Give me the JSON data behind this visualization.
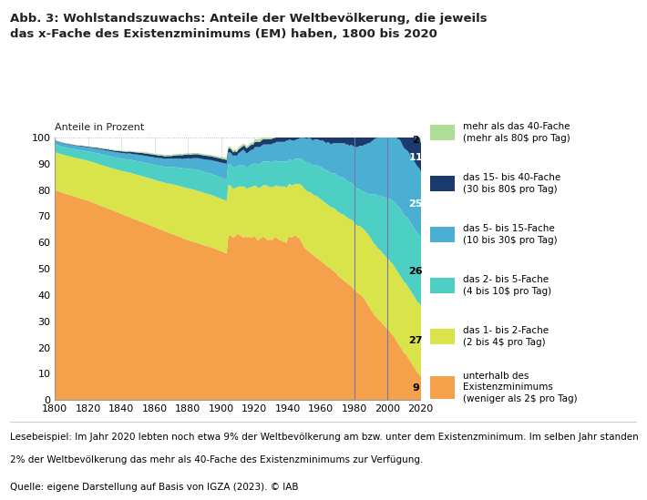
{
  "title": "Abb. 3: Wohlstandszuwachs: Anteile der Weltbevölkerung, die jeweils\ndas x-Fache des Existenzminimums (EM) haben, 1800 bis 2020",
  "subtitle": "Anteile in Prozent",
  "footnote1": "Lesebeispiel: Im Jahr 2020 lebten noch etwa 9% der Weltbevölkerung am bzw. unter dem Existenzminimum. Im selben Jahr standen",
  "footnote2": "2% der Weltbevölkerung das mehr als 40-Fache des Existenzminimums zur Verfügung.",
  "source": "Quelle: eigene Darstellung auf Basis von IGZA (2023). © IAB",
  "colors": {
    "below": "#F5A04A",
    "x1_2": "#D9E44A",
    "x2_5": "#4ECFC4",
    "x5_15": "#4BAFD4",
    "x15_40": "#1B3A6E",
    "above40": "#AEDD96"
  },
  "legend_labels": [
    "mehr als das 40-Fache\n(mehr als 80$ pro Tag)",
    "das 15- bis 40-Fache\n(30 bis 80$ pro Tag)",
    "das 5- bis 15-Fache\n(10 bis 30$ pro Tag)",
    "das 2- bis 5-Fache\n(4 bis 10$ pro Tag)",
    "das 1- bis 2-Fache\n(2 bis 4$ pro Tag)",
    "unterhalb des\nExistenzminimums\n(weniger als 2$ pro Tag)"
  ],
  "years": [
    1800,
    1801,
    1802,
    1803,
    1804,
    1805,
    1806,
    1807,
    1808,
    1809,
    1810,
    1811,
    1812,
    1813,
    1814,
    1815,
    1816,
    1817,
    1818,
    1819,
    1820,
    1821,
    1822,
    1823,
    1824,
    1825,
    1826,
    1827,
    1828,
    1829,
    1830,
    1831,
    1832,
    1833,
    1834,
    1835,
    1836,
    1837,
    1838,
    1839,
    1840,
    1841,
    1842,
    1843,
    1844,
    1845,
    1846,
    1847,
    1848,
    1849,
    1850,
    1851,
    1852,
    1853,
    1854,
    1855,
    1856,
    1857,
    1858,
    1859,
    1860,
    1861,
    1862,
    1863,
    1864,
    1865,
    1866,
    1867,
    1868,
    1869,
    1870,
    1871,
    1872,
    1873,
    1874,
    1875,
    1876,
    1877,
    1878,
    1879,
    1880,
    1881,
    1882,
    1883,
    1884,
    1885,
    1886,
    1887,
    1888,
    1889,
    1890,
    1891,
    1892,
    1893,
    1894,
    1895,
    1896,
    1897,
    1898,
    1899,
    1900,
    1901,
    1902,
    1903,
    1904,
    1905,
    1906,
    1907,
    1908,
    1909,
    1910,
    1911,
    1912,
    1913,
    1914,
    1915,
    1916,
    1917,
    1918,
    1919,
    1920,
    1921,
    1922,
    1923,
    1924,
    1925,
    1926,
    1927,
    1928,
    1929,
    1930,
    1931,
    1932,
    1933,
    1934,
    1935,
    1936,
    1937,
    1938,
    1939,
    1940,
    1941,
    1942,
    1943,
    1944,
    1945,
    1946,
    1947,
    1948,
    1949,
    1950,
    1951,
    1952,
    1953,
    1954,
    1955,
    1956,
    1957,
    1958,
    1959,
    1960,
    1961,
    1962,
    1963,
    1964,
    1965,
    1966,
    1967,
    1968,
    1969,
    1970,
    1971,
    1972,
    1973,
    1974,
    1975,
    1976,
    1977,
    1978,
    1979,
    1980,
    1981,
    1982,
    1983,
    1984,
    1985,
    1986,
    1987,
    1988,
    1989,
    1990,
    1991,
    1992,
    1993,
    1994,
    1995,
    1996,
    1997,
    1998,
    1999,
    2000,
    2001,
    2002,
    2003,
    2004,
    2005,
    2006,
    2007,
    2008,
    2009,
    2010,
    2011,
    2012,
    2013,
    2014,
    2015,
    2016,
    2017,
    2018,
    2019,
    2020
  ],
  "below_data": [
    80.0,
    79.8,
    79.6,
    79.4,
    79.2,
    79.0,
    78.8,
    78.6,
    78.4,
    78.2,
    78.0,
    77.8,
    77.6,
    77.4,
    77.2,
    77.0,
    76.8,
    76.6,
    76.4,
    76.2,
    76.0,
    75.8,
    75.5,
    75.2,
    75.0,
    74.8,
    74.5,
    74.2,
    74.0,
    73.8,
    73.5,
    73.2,
    73.0,
    72.8,
    72.5,
    72.3,
    72.0,
    71.8,
    71.5,
    71.2,
    71.0,
    70.7,
    70.4,
    70.2,
    70.0,
    69.8,
    69.5,
    69.2,
    69.0,
    68.7,
    68.5,
    68.2,
    68.0,
    67.7,
    67.5,
    67.2,
    67.0,
    66.7,
    66.5,
    66.2,
    66.0,
    65.7,
    65.4,
    65.2,
    65.0,
    64.7,
    64.4,
    64.2,
    64.0,
    63.7,
    63.5,
    63.3,
    63.0,
    62.8,
    62.5,
    62.2,
    62.0,
    61.7,
    61.5,
    61.2,
    61.0,
    60.8,
    60.6,
    60.4,
    60.2,
    60.0,
    59.8,
    59.6,
    59.4,
    59.2,
    59.0,
    58.8,
    58.6,
    58.5,
    58.3,
    58.0,
    57.8,
    57.5,
    57.3,
    57.0,
    56.8,
    56.5,
    56.3,
    56.0,
    62.5,
    63.0,
    62.5,
    62.0,
    62.5,
    63.0,
    63.5,
    63.0,
    62.5,
    62.0,
    62.5,
    62.0,
    62.5,
    62.0,
    62.0,
    62.5,
    62.5,
    61.5,
    61.0,
    61.5,
    62.0,
    62.5,
    62.0,
    61.5,
    61.0,
    61.5,
    61.0,
    61.5,
    62.0,
    62.0,
    61.5,
    61.0,
    61.0,
    60.5,
    60.5,
    60.0,
    62.0,
    62.5,
    62.0,
    62.5,
    63.0,
    62.5,
    62.0,
    61.5,
    60.5,
    59.5,
    58.0,
    57.5,
    57.0,
    56.5,
    56.0,
    55.5,
    55.0,
    54.5,
    54.0,
    53.5,
    53.0,
    52.5,
    52.0,
    51.5,
    51.0,
    50.5,
    50.0,
    49.5,
    49.0,
    48.5,
    47.5,
    47.0,
    46.5,
    46.0,
    45.5,
    45.0,
    44.5,
    44.0,
    43.5,
    43.0,
    42.0,
    41.5,
    41.0,
    40.5,
    40.0,
    39.5,
    38.5,
    37.5,
    36.5,
    35.5,
    34.5,
    33.5,
    32.5,
    32.0,
    31.0,
    30.5,
    30.0,
    29.0,
    28.5,
    27.5,
    27.0,
    26.5,
    25.5,
    25.0,
    24.0,
    23.0,
    22.0,
    21.0,
    20.0,
    19.0,
    18.0,
    17.5,
    16.5,
    15.5,
    14.5,
    13.5,
    12.5,
    11.5,
    10.5,
    10.0,
    9.0
  ],
  "x1_2_data": [
    14.5,
    14.5,
    14.5,
    14.5,
    14.5,
    14.6,
    14.6,
    14.6,
    14.7,
    14.7,
    14.8,
    14.8,
    14.9,
    14.9,
    15.0,
    15.0,
    15.1,
    15.1,
    15.2,
    15.2,
    15.3,
    15.3,
    15.4,
    15.4,
    15.5,
    15.5,
    15.6,
    15.6,
    15.7,
    15.7,
    15.8,
    15.8,
    15.9,
    15.9,
    16.0,
    16.0,
    16.1,
    16.2,
    16.3,
    16.4,
    16.5,
    16.6,
    16.7,
    16.8,
    16.9,
    17.0,
    17.1,
    17.1,
    17.2,
    17.3,
    17.4,
    17.4,
    17.5,
    17.6,
    17.6,
    17.7,
    17.8,
    17.8,
    17.9,
    18.0,
    18.0,
    18.1,
    18.2,
    18.2,
    18.3,
    18.4,
    18.5,
    18.6,
    18.7,
    18.8,
    18.9,
    19.0,
    19.1,
    19.2,
    19.3,
    19.4,
    19.4,
    19.5,
    19.6,
    19.7,
    19.8,
    19.8,
    19.9,
    20.0,
    20.0,
    20.0,
    20.0,
    20.0,
    20.0,
    20.0,
    20.0,
    20.0,
    20.0,
    20.0,
    20.0,
    20.0,
    20.0,
    20.0,
    20.0,
    20.0,
    20.0,
    20.0,
    20.0,
    20.0,
    19.5,
    19.0,
    19.0,
    18.5,
    18.5,
    18.0,
    18.0,
    18.5,
    19.0,
    19.5,
    19.0,
    18.5,
    18.5,
    19.0,
    19.5,
    19.0,
    19.5,
    20.0,
    20.0,
    19.5,
    19.5,
    19.5,
    20.0,
    20.5,
    20.5,
    20.0,
    20.0,
    20.0,
    19.5,
    20.0,
    20.0,
    20.5,
    20.5,
    21.0,
    21.0,
    21.0,
    20.0,
    20.0,
    20.0,
    19.5,
    19.5,
    20.0,
    20.5,
    21.0,
    21.5,
    22.0,
    22.5,
    22.5,
    22.5,
    23.0,
    23.0,
    23.0,
    23.0,
    23.5,
    23.5,
    23.5,
    23.5,
    23.5,
    23.5,
    23.5,
    23.5,
    23.5,
    23.5,
    24.0,
    24.0,
    24.0,
    24.5,
    24.5,
    24.5,
    25.0,
    25.0,
    25.0,
    25.0,
    25.0,
    25.5,
    25.5,
    25.5,
    25.5,
    25.5,
    26.0,
    26.0,
    26.0,
    26.5,
    26.5,
    27.0,
    27.0,
    27.0,
    27.0,
    27.0,
    27.0,
    27.0,
    27.0,
    27.0,
    27.0,
    27.0,
    27.0,
    27.0,
    27.0,
    27.0,
    27.0,
    27.0,
    27.0,
    27.0,
    27.0,
    27.0,
    27.0,
    27.0,
    27.0,
    27.0,
    27.0,
    27.0,
    27.0,
    27.0,
    27.0,
    27.0,
    27.0,
    27.0
  ],
  "x2_5_data": [
    3.0,
    3.0,
    3.0,
    3.0,
    3.0,
    3.0,
    3.0,
    3.1,
    3.1,
    3.1,
    3.1,
    3.2,
    3.2,
    3.2,
    3.2,
    3.3,
    3.3,
    3.4,
    3.4,
    3.5,
    3.5,
    3.6,
    3.7,
    3.8,
    3.8,
    3.9,
    4.0,
    4.0,
    4.1,
    4.1,
    4.2,
    4.2,
    4.3,
    4.3,
    4.4,
    4.4,
    4.5,
    4.5,
    4.6,
    4.6,
    4.7,
    4.7,
    4.8,
    4.8,
    4.9,
    5.0,
    5.0,
    5.1,
    5.1,
    5.2,
    5.2,
    5.3,
    5.3,
    5.4,
    5.4,
    5.5,
    5.5,
    5.6,
    5.6,
    5.7,
    5.7,
    5.8,
    5.8,
    5.9,
    6.0,
    6.0,
    6.1,
    6.2,
    6.3,
    6.4,
    6.5,
    6.6,
    6.7,
    6.8,
    6.9,
    7.0,
    7.1,
    7.2,
    7.3,
    7.4,
    7.5,
    7.5,
    7.6,
    7.7,
    7.8,
    7.9,
    8.0,
    8.0,
    8.0,
    8.0,
    8.0,
    8.0,
    8.0,
    8.0,
    8.0,
    8.0,
    8.0,
    8.0,
    8.0,
    8.0,
    8.0,
    8.0,
    8.0,
    8.0,
    8.0,
    8.0,
    8.0,
    8.0,
    8.0,
    8.0,
    8.0,
    8.0,
    8.0,
    8.0,
    8.0,
    8.0,
    8.0,
    8.5,
    8.5,
    8.5,
    8.5,
    8.5,
    9.0,
    9.0,
    9.0,
    9.0,
    9.0,
    9.0,
    9.5,
    9.5,
    9.5,
    9.5,
    9.5,
    9.5,
    9.5,
    9.5,
    9.5,
    9.5,
    9.5,
    10.0,
    9.5,
    9.5,
    9.5,
    9.5,
    9.5,
    9.5,
    9.5,
    9.5,
    10.0,
    10.0,
    10.5,
    10.5,
    11.0,
    11.0,
    11.0,
    11.0,
    11.5,
    11.5,
    12.0,
    12.0,
    12.5,
    12.5,
    12.5,
    12.5,
    13.0,
    13.0,
    13.0,
    13.0,
    13.5,
    13.5,
    13.5,
    13.5,
    14.0,
    14.0,
    14.0,
    14.0,
    14.0,
    14.0,
    14.0,
    14.0,
    14.0,
    14.0,
    14.0,
    14.0,
    14.0,
    14.0,
    14.5,
    15.0,
    15.5,
    16.0,
    17.0,
    18.0,
    19.0,
    19.5,
    20.0,
    20.5,
    21.0,
    21.5,
    22.0,
    22.5,
    23.0,
    23.5,
    24.0,
    24.0,
    24.5,
    25.0,
    25.0,
    25.5,
    25.5,
    25.5,
    25.5,
    25.5,
    26.0,
    26.0,
    26.0,
    26.0,
    26.0,
    26.0,
    26.0,
    26.0,
    26.0
  ],
  "x5_15_data": [
    1.3,
    1.3,
    1.3,
    1.3,
    1.3,
    1.3,
    1.3,
    1.3,
    1.4,
    1.4,
    1.4,
    1.4,
    1.4,
    1.4,
    1.5,
    1.5,
    1.5,
    1.5,
    1.5,
    1.5,
    1.5,
    1.6,
    1.6,
    1.6,
    1.6,
    1.7,
    1.7,
    1.7,
    1.8,
    1.8,
    1.8,
    1.9,
    1.9,
    1.9,
    2.0,
    2.0,
    2.0,
    2.0,
    2.1,
    2.1,
    2.1,
    2.2,
    2.2,
    2.2,
    2.3,
    2.3,
    2.3,
    2.4,
    2.4,
    2.5,
    2.5,
    2.5,
    2.6,
    2.6,
    2.6,
    2.7,
    2.7,
    2.7,
    2.8,
    2.8,
    2.8,
    2.9,
    2.9,
    3.0,
    3.0,
    3.0,
    3.0,
    3.1,
    3.1,
    3.2,
    3.2,
    3.2,
    3.3,
    3.3,
    3.4,
    3.5,
    3.5,
    3.6,
    3.7,
    3.8,
    4.0,
    4.0,
    4.1,
    4.2,
    4.3,
    4.4,
    4.5,
    4.5,
    4.6,
    4.7,
    4.8,
    4.9,
    5.0,
    5.1,
    5.2,
    5.3,
    5.4,
    5.5,
    5.6,
    5.7,
    5.8,
    5.9,
    6.0,
    6.1,
    4.5,
    4.5,
    4.5,
    4.5,
    4.5,
    4.0,
    4.5,
    5.0,
    5.5,
    6.0,
    5.5,
    5.5,
    5.5,
    5.5,
    5.5,
    5.5,
    6.0,
    6.5,
    6.5,
    6.5,
    6.5,
    6.5,
    6.5,
    6.5,
    6.5,
    6.5,
    7.0,
    7.0,
    7.0,
    7.0,
    7.5,
    7.5,
    7.5,
    7.5,
    7.5,
    8.0,
    7.5,
    7.5,
    7.5,
    7.5,
    7.0,
    7.5,
    7.5,
    8.0,
    8.0,
    8.5,
    9.0,
    9.0,
    9.5,
    9.5,
    9.5,
    9.5,
    10.0,
    10.0,
    10.0,
    10.0,
    10.0,
    10.5,
    10.5,
    10.5,
    11.0,
    11.0,
    11.0,
    11.5,
    11.5,
    12.0,
    12.5,
    13.0,
    13.0,
    13.0,
    13.5,
    13.5,
    14.0,
    14.0,
    14.5,
    14.5,
    15.0,
    15.5,
    16.0,
    16.5,
    17.0,
    17.5,
    18.0,
    18.5,
    19.0,
    19.5,
    20.0,
    20.5,
    21.0,
    21.5,
    22.0,
    22.5,
    23.0,
    23.0,
    23.5,
    24.0,
    24.5,
    24.5,
    25.0,
    25.0,
    25.5,
    25.5,
    25.5,
    26.0,
    26.0,
    25.5,
    25.5,
    25.5,
    25.5,
    25.5,
    25.5,
    25.5,
    25.5,
    25.5,
    25.5,
    25.5,
    25.0
  ],
  "x15_40_data": [
    0.2,
    0.2,
    0.2,
    0.2,
    0.2,
    0.2,
    0.2,
    0.2,
    0.2,
    0.2,
    0.2,
    0.2,
    0.2,
    0.2,
    0.2,
    0.3,
    0.3,
    0.3,
    0.3,
    0.3,
    0.3,
    0.3,
    0.3,
    0.3,
    0.4,
    0.4,
    0.4,
    0.4,
    0.4,
    0.4,
    0.5,
    0.5,
    0.5,
    0.5,
    0.5,
    0.5,
    0.5,
    0.6,
    0.6,
    0.6,
    0.6,
    0.6,
    0.7,
    0.7,
    0.7,
    0.7,
    0.7,
    0.8,
    0.8,
    0.8,
    0.8,
    0.9,
    0.9,
    0.9,
    1.0,
    1.0,
    1.0,
    1.0,
    1.0,
    1.0,
    1.0,
    1.0,
    1.0,
    1.0,
    1.0,
    1.0,
    1.0,
    1.0,
    1.0,
    1.0,
    1.0,
    1.2,
    1.2,
    1.3,
    1.3,
    1.4,
    1.4,
    1.5,
    1.5,
    1.5,
    1.5,
    1.5,
    1.5,
    1.5,
    1.5,
    1.5,
    1.5,
    1.5,
    1.5,
    1.5,
    1.5,
    1.5,
    1.5,
    1.5,
    1.5,
    1.5,
    1.5,
    1.5,
    1.5,
    1.5,
    1.5,
    1.5,
    1.5,
    1.5,
    1.5,
    1.5,
    1.5,
    1.5,
    1.5,
    1.5,
    1.5,
    1.5,
    1.5,
    1.5,
    2.0,
    2.0,
    2.0,
    2.0,
    2.0,
    2.0,
    2.0,
    2.0,
    2.0,
    2.0,
    2.0,
    2.0,
    2.0,
    2.0,
    2.0,
    2.0,
    2.0,
    2.0,
    2.0,
    2.0,
    2.0,
    2.0,
    2.0,
    2.0,
    2.5,
    2.5,
    2.5,
    2.5,
    2.5,
    2.5,
    2.5,
    2.5,
    2.5,
    2.5,
    3.0,
    3.0,
    3.0,
    3.0,
    3.0,
    3.0,
    3.0,
    3.5,
    3.5,
    3.5,
    3.5,
    3.5,
    4.0,
    4.0,
    4.0,
    4.0,
    4.0,
    4.0,
    4.0,
    4.0,
    4.0,
    4.0,
    4.0,
    4.0,
    4.0,
    4.0,
    4.0,
    4.0,
    4.5,
    5.0,
    5.5,
    6.0,
    6.5,
    7.0,
    7.0,
    7.5,
    8.0,
    8.0,
    8.5,
    8.5,
    9.0,
    9.0,
    9.5,
    9.5,
    9.5,
    10.0,
    10.0,
    10.0,
    10.5,
    10.5,
    10.5,
    11.0,
    11.0,
    11.0,
    11.5,
    11.5,
    11.5,
    12.0,
    12.0,
    12.0,
    12.5,
    12.5,
    13.0,
    13.0,
    13.0,
    13.0,
    13.0,
    13.0,
    13.0,
    13.0,
    12.5,
    12.0,
    11.0
  ],
  "above40_data": [
    0.1,
    0.1,
    0.1,
    0.1,
    0.1,
    0.1,
    0.1,
    0.1,
    0.1,
    0.1,
    0.1,
    0.1,
    0.1,
    0.1,
    0.1,
    0.1,
    0.1,
    0.1,
    0.1,
    0.1,
    0.2,
    0.2,
    0.2,
    0.2,
    0.2,
    0.2,
    0.2,
    0.2,
    0.2,
    0.2,
    0.3,
    0.3,
    0.3,
    0.3,
    0.3,
    0.3,
    0.3,
    0.3,
    0.3,
    0.3,
    0.3,
    0.3,
    0.3,
    0.3,
    0.3,
    0.3,
    0.3,
    0.3,
    0.3,
    0.3,
    0.4,
    0.4,
    0.4,
    0.4,
    0.4,
    0.4,
    0.4,
    0.4,
    0.4,
    0.4,
    0.5,
    0.5,
    0.5,
    0.5,
    0.5,
    0.5,
    0.5,
    0.5,
    0.5,
    0.5,
    0.5,
    0.5,
    0.5,
    0.5,
    0.5,
    0.5,
    0.5,
    0.5,
    0.5,
    0.5,
    0.5,
    0.5,
    0.5,
    0.5,
    0.5,
    0.5,
    0.5,
    0.5,
    0.5,
    0.5,
    0.5,
    0.5,
    0.5,
    0.5,
    0.5,
    0.5,
    0.5,
    0.5,
    0.5,
    0.5,
    0.7,
    0.7,
    0.7,
    0.7,
    0.7,
    0.7,
    0.7,
    0.7,
    0.7,
    0.7,
    0.8,
    0.8,
    0.8,
    0.8,
    0.8,
    0.8,
    0.8,
    0.8,
    0.8,
    0.8,
    1.0,
    1.0,
    1.0,
    1.0,
    1.0,
    1.0,
    1.0,
    1.0,
    1.0,
    1.0,
    1.0,
    1.0,
    1.0,
    1.0,
    1.0,
    1.0,
    1.0,
    1.0,
    1.0,
    1.0,
    1.0,
    1.0,
    1.0,
    1.0,
    1.0,
    1.0,
    1.0,
    1.0,
    1.0,
    1.0,
    1.0,
    1.0,
    1.0,
    1.0,
    1.0,
    1.0,
    1.0,
    1.0,
    1.0,
    1.0,
    1.0,
    1.0,
    1.0,
    1.0,
    1.0,
    1.0,
    1.0,
    1.0,
    1.0,
    1.0,
    1.0,
    1.0,
    1.0,
    1.0,
    1.0,
    1.0,
    1.0,
    1.0,
    1.0,
    1.0,
    1.5,
    1.5,
    1.5,
    1.5,
    2.0,
    2.0,
    2.0,
    2.0,
    2.0,
    2.0,
    2.5,
    2.5,
    2.5,
    2.5,
    2.5,
    2.5,
    2.5,
    2.5,
    2.5,
    2.5,
    2.5,
    2.5,
    2.5,
    2.5,
    2.5,
    2.5,
    2.5,
    2.5,
    2.5,
    2.5,
    2.5,
    2.5,
    2.5,
    2.5,
    2.5,
    2.5,
    2.5,
    2.5,
    2.5,
    2.5,
    2.0
  ],
  "background_color": "#FFFFFF",
  "grid_color": "#9999BB",
  "xlim": [
    1800,
    2020
  ],
  "ylim": [
    0,
    100
  ],
  "vlines": [
    1980,
    2000
  ]
}
